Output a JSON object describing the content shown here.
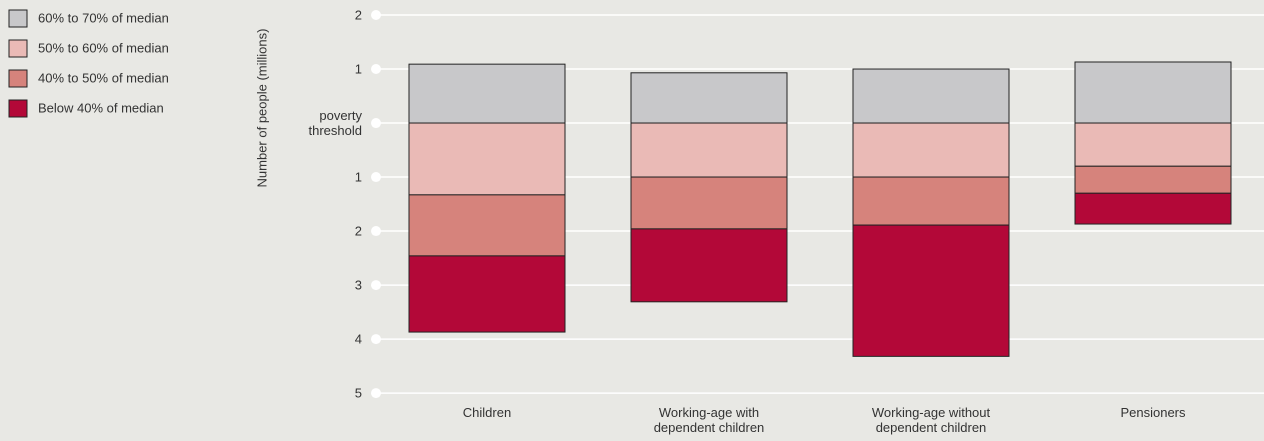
{
  "chart_data": {
    "type": "bar",
    "stacked": true,
    "y_label": "Number of people (millions)",
    "categories": [
      "Children",
      "Working-age with dependent children",
      "Working-age without dependent children",
      "Pensioners"
    ],
    "series": [
      {
        "name": "60% to 70% of median",
        "color": "#c8c8ca",
        "values": [
          1.09,
          0.93,
          1.0,
          1.13
        ]
      },
      {
        "name": "50% to 60% of median",
        "color": "#eabab6",
        "values": [
          -1.33,
          -1.0,
          -1.0,
          -0.8
        ]
      },
      {
        "name": "40% to 50% of median",
        "color": "#d6837c",
        "values": [
          -1.13,
          -0.96,
          -0.89,
          -0.5
        ]
      },
      {
        "name": "Below 40% of median",
        "color": "#b30838",
        "values": [
          -1.41,
          -1.35,
          -2.43,
          -0.57
        ]
      }
    ],
    "ylim": [
      2.2,
      -5.15
    ],
    "yticks": [
      2,
      1,
      {
        "value": 0,
        "label": "poverty threshold"
      },
      {
        "value": -1,
        "label": "1"
      },
      {
        "value": -2,
        "label": "2"
      },
      {
        "value": -3,
        "label": "3"
      },
      {
        "value": -4,
        "label": "4"
      },
      {
        "value": -5,
        "label": "5"
      }
    ],
    "grid": true
  }
}
